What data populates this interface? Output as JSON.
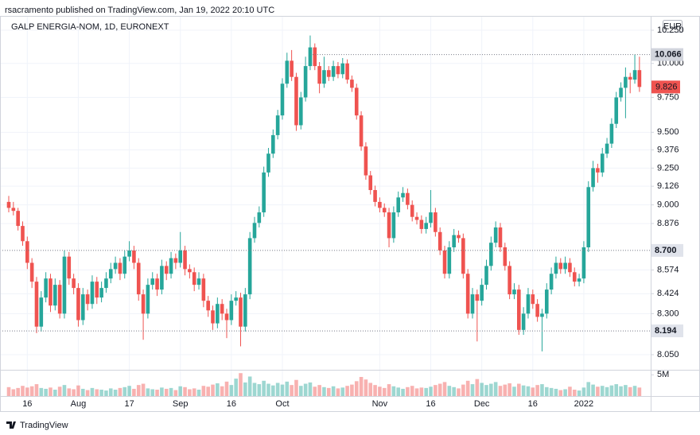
{
  "header": {
    "text": "rsacramento published on TradingView.com, Jan 19, 2022 20:10 UTC"
  },
  "footer": {
    "brand": "TradingView"
  },
  "chart_data": {
    "type": "candlestick",
    "title": "GALP ENERGIA-NOM, 1D, EURONEXT",
    "currency": "EUR",
    "log_scale": true,
    "grid": true,
    "up_color": "#26a69a",
    "down_color": "#ef5350",
    "ylim": [
      7.96,
      10.36
    ],
    "yticks": [
      {
        "value": 10.25,
        "label": "10.250"
      },
      {
        "value": 10,
        "label": "10.000"
      },
      {
        "value": 9.75,
        "label": "9.750"
      },
      {
        "value": 9.5,
        "label": "9.500"
      },
      9.376,
      {
        "value": 9.25,
        "label": "9.250"
      },
      9.126,
      {
        "value": 9,
        "label": "9.000"
      },
      8.876,
      8.574,
      8.424,
      {
        "value": 8.3,
        "label": "8.300"
      },
      {
        "value": 8.05,
        "label": "8.050"
      }
    ],
    "xticks": [
      {
        "value": 4,
        "label": "16"
      },
      {
        "value": 15,
        "label": "Aug"
      },
      {
        "value": 26,
        "label": "17"
      },
      {
        "value": 37,
        "label": "Sep"
      },
      {
        "value": 48,
        "label": "16"
      },
      {
        "value": 59,
        "label": "Oct"
      },
      {
        "value": 80,
        "label": "Nov"
      },
      {
        "value": 91,
        "label": "16"
      },
      {
        "value": 102,
        "label": "Dec"
      },
      {
        "value": 113,
        "label": "16"
      },
      {
        "value": 124,
        "label": "2022"
      }
    ],
    "price_lines": [
      {
        "value": 8.7,
        "label": "8.700"
      },
      {
        "value": 8.194,
        "label": "8.194"
      }
    ],
    "high_line": {
      "value": 10.066,
      "label": "10.066"
    },
    "last_price": {
      "value": 9.826,
      "label": "9.826"
    },
    "vlim": [
      0,
      6000000
    ],
    "vticks": [
      {
        "value": 5000000,
        "label": "5M"
      }
    ],
    "candles": [
      [
        9.02,
        9.06,
        8.95,
        8.98
      ],
      [
        8.98,
        9.02,
        8.93,
        8.96
      ],
      [
        8.96,
        8.98,
        8.83,
        8.86
      ],
      [
        8.86,
        8.89,
        8.73,
        8.76
      ],
      [
        8.76,
        8.79,
        8.58,
        8.62
      ],
      [
        8.62,
        8.65,
        8.46,
        8.5
      ],
      [
        8.5,
        8.53,
        8.18,
        8.22
      ],
      [
        8.22,
        8.44,
        8.19,
        8.4
      ],
      [
        8.4,
        8.56,
        8.37,
        8.52
      ],
      [
        8.52,
        8.55,
        8.31,
        8.35
      ],
      [
        8.35,
        8.52,
        8.32,
        8.48
      ],
      [
        8.48,
        8.51,
        8.27,
        8.3
      ],
      [
        8.3,
        8.7,
        8.27,
        8.66
      ],
      [
        8.66,
        8.69,
        8.48,
        8.52
      ],
      [
        8.52,
        8.55,
        8.42,
        8.46
      ],
      [
        8.46,
        8.49,
        8.22,
        8.26
      ],
      [
        8.26,
        8.46,
        8.23,
        8.42
      ],
      [
        8.42,
        8.45,
        8.32,
        8.36
      ],
      [
        8.36,
        8.54,
        8.33,
        8.5
      ],
      [
        8.5,
        8.53,
        8.36,
        8.4
      ],
      [
        8.4,
        8.5,
        8.37,
        8.46
      ],
      [
        8.46,
        8.56,
        8.43,
        8.52
      ],
      [
        8.52,
        8.62,
        8.49,
        8.58
      ],
      [
        8.58,
        8.66,
        8.55,
        8.62
      ],
      [
        8.62,
        8.65,
        8.51,
        8.55
      ],
      [
        8.55,
        8.7,
        8.52,
        8.66
      ],
      [
        8.66,
        8.76,
        8.63,
        8.7
      ],
      [
        8.7,
        8.73,
        8.58,
        8.62
      ],
      [
        8.62,
        8.65,
        8.38,
        8.42
      ],
      [
        8.42,
        8.45,
        8.14,
        8.3
      ],
      [
        8.3,
        8.52,
        8.27,
        8.48
      ],
      [
        8.48,
        8.56,
        8.45,
        8.52
      ],
      [
        8.52,
        8.55,
        8.41,
        8.45
      ],
      [
        8.45,
        8.64,
        8.42,
        8.6
      ],
      [
        8.6,
        8.63,
        8.51,
        8.55
      ],
      [
        8.55,
        8.69,
        8.52,
        8.65
      ],
      [
        8.65,
        8.68,
        8.58,
        8.62
      ],
      [
        8.62,
        8.82,
        8.59,
        8.7
      ],
      [
        8.7,
        8.73,
        8.54,
        8.58
      ],
      [
        8.58,
        8.61,
        8.52,
        8.56
      ],
      [
        8.56,
        8.59,
        8.44,
        8.48
      ],
      [
        8.48,
        8.56,
        8.45,
        8.52
      ],
      [
        8.52,
        8.55,
        8.34,
        8.38
      ],
      [
        8.38,
        8.41,
        8.28,
        8.32
      ],
      [
        8.32,
        8.35,
        8.2,
        8.24
      ],
      [
        8.24,
        8.4,
        8.21,
        8.36
      ],
      [
        8.36,
        8.39,
        8.26,
        8.3
      ],
      [
        8.3,
        8.33,
        8.15,
        8.26
      ],
      [
        8.26,
        8.42,
        8.23,
        8.38
      ],
      [
        8.38,
        8.44,
        8.35,
        8.4
      ],
      [
        8.4,
        8.43,
        8.1,
        8.22
      ],
      [
        8.22,
        8.46,
        8.19,
        8.42
      ],
      [
        8.42,
        8.82,
        8.39,
        8.78
      ],
      [
        8.78,
        8.92,
        8.75,
        8.88
      ],
      [
        8.88,
        8.99,
        8.85,
        8.95
      ],
      [
        8.95,
        9.26,
        8.92,
        9.22
      ],
      [
        9.22,
        9.39,
        9.19,
        9.35
      ],
      [
        9.35,
        9.52,
        9.32,
        9.48
      ],
      [
        9.48,
        9.66,
        9.45,
        9.62
      ],
      [
        9.62,
        9.89,
        9.59,
        9.85
      ],
      [
        9.85,
        10.08,
        9.82,
        10.02
      ],
      [
        10.02,
        10.1,
        9.87,
        9.9
      ],
      [
        9.9,
        9.93,
        9.51,
        9.55
      ],
      [
        9.55,
        9.79,
        9.52,
        9.75
      ],
      [
        9.75,
        10.05,
        9.72,
        9.98
      ],
      [
        9.98,
        10.21,
        9.95,
        10.12
      ],
      [
        10.12,
        10.15,
        9.95,
        9.98
      ],
      [
        9.98,
        10.01,
        9.78,
        9.85
      ],
      [
        9.85,
        10.05,
        9.82,
        9.95
      ],
      [
        9.95,
        9.98,
        9.87,
        9.9
      ],
      [
        9.9,
        10.02,
        9.87,
        9.98
      ],
      [
        9.98,
        10.01,
        9.89,
        9.92
      ],
      [
        9.92,
        10.04,
        9.89,
        10
      ],
      [
        10,
        10.03,
        9.85,
        9.88
      ],
      [
        9.88,
        9.91,
        9.79,
        9.82
      ],
      [
        9.82,
        9.85,
        9.59,
        9.62
      ],
      [
        9.62,
        9.65,
        9.37,
        9.4
      ],
      [
        9.4,
        9.43,
        9.17,
        9.2
      ],
      [
        9.2,
        9.23,
        9.07,
        9.1
      ],
      [
        9.1,
        9.13,
        8.99,
        9.02
      ],
      [
        9.02,
        9.05,
        8.95,
        8.98
      ],
      [
        8.98,
        9.01,
        8.92,
        8.95
      ],
      [
        8.95,
        8.98,
        8.72,
        8.78
      ],
      [
        8.78,
        8.99,
        8.75,
        8.95
      ],
      [
        8.95,
        9.09,
        8.92,
        9.05
      ],
      [
        9.05,
        9.12,
        9.02,
        9.08
      ],
      [
        9.08,
        9.11,
        8.97,
        9
      ],
      [
        9,
        9.03,
        8.89,
        8.92
      ],
      [
        8.92,
        8.95,
        8.87,
        8.9
      ],
      [
        8.9,
        8.93,
        8.81,
        8.84
      ],
      [
        8.84,
        8.92,
        8.81,
        8.88
      ],
      [
        8.88,
        9.1,
        8.85,
        8.95
      ],
      [
        8.95,
        8.98,
        8.79,
        8.82
      ],
      [
        8.82,
        8.85,
        8.67,
        8.7
      ],
      [
        8.7,
        8.73,
        8.52,
        8.55
      ],
      [
        8.55,
        8.76,
        8.52,
        8.72
      ],
      [
        8.72,
        8.84,
        8.69,
        8.8
      ],
      [
        8.8,
        8.83,
        8.75,
        8.78
      ],
      [
        8.78,
        8.81,
        8.52,
        8.55
      ],
      [
        8.55,
        8.58,
        8.27,
        8.3
      ],
      [
        8.3,
        8.46,
        8.27,
        8.42
      ],
      [
        8.42,
        8.45,
        8.13,
        8.38
      ],
      [
        8.38,
        8.52,
        8.35,
        8.48
      ],
      [
        8.48,
        8.64,
        8.45,
        8.6
      ],
      [
        8.6,
        8.79,
        8.57,
        8.75
      ],
      [
        8.75,
        8.89,
        8.72,
        8.85
      ],
      [
        8.85,
        8.88,
        8.69,
        8.72
      ],
      [
        8.72,
        8.75,
        8.57,
        8.6
      ],
      [
        8.6,
        8.63,
        8.39,
        8.42
      ],
      [
        8.42,
        8.49,
        8.39,
        8.45
      ],
      [
        8.45,
        8.48,
        8.17,
        8.2
      ],
      [
        8.2,
        8.34,
        8.17,
        8.3
      ],
      [
        8.3,
        8.46,
        8.27,
        8.42
      ],
      [
        8.42,
        8.45,
        8.33,
        8.36
      ],
      [
        8.36,
        8.39,
        8.25,
        8.28
      ],
      [
        8.28,
        8.33,
        8.07,
        8.3
      ],
      [
        8.3,
        8.49,
        8.27,
        8.45
      ],
      [
        8.45,
        8.59,
        8.42,
        8.55
      ],
      [
        8.55,
        8.66,
        8.52,
        8.62
      ],
      [
        8.62,
        8.65,
        8.55,
        8.58
      ],
      [
        8.58,
        8.66,
        8.55,
        8.62
      ],
      [
        8.62,
        8.65,
        8.53,
        8.56
      ],
      [
        8.56,
        8.59,
        8.47,
        8.5
      ],
      [
        8.5,
        8.55,
        8.47,
        8.52
      ],
      [
        8.52,
        8.76,
        8.49,
        8.72
      ],
      [
        8.72,
        9.16,
        8.69,
        9.12
      ],
      [
        9.12,
        9.3,
        9.09,
        9.25
      ],
      [
        9.25,
        9.28,
        9.15,
        9.22
      ],
      [
        9.22,
        9.39,
        9.19,
        9.35
      ],
      [
        9.35,
        9.46,
        9.32,
        9.42
      ],
      [
        9.42,
        9.6,
        9.39,
        9.56
      ],
      [
        9.56,
        9.79,
        9.53,
        9.75
      ],
      [
        9.75,
        9.86,
        9.72,
        9.82
      ],
      [
        9.82,
        9.97,
        9.6,
        9.9
      ],
      [
        9.9,
        9.93,
        9.78,
        9.88
      ],
      [
        9.88,
        10.066,
        9.85,
        9.95
      ],
      [
        9.95,
        10.05,
        9.79,
        9.826
      ]
    ],
    "volume": [
      2100000.0,
      1600000.0,
      1900000.0,
      2400000.0,
      2000000.0,
      2300000.0,
      2800000.0,
      1900000.0,
      1700000.0,
      2000000.0,
      1500000.0,
      2200000.0,
      2600000.0,
      1800000.0,
      1600000.0,
      2500000.0,
      1700000.0,
      1400000.0,
      1900000.0,
      1600000.0,
      1500000.0,
      1300000.0,
      1800000.0,
      1500000.0,
      1900000.0,
      2100000.0,
      2400000.0,
      1700000.0,
      2600000.0,
      2900000.0,
      1800000.0,
      1600000.0,
      1500000.0,
      2000000.0,
      1700000.0,
      1900000.0,
      1400000.0,
      2300000.0,
      2100000.0,
      1600000.0,
      1800000.0,
      1500000.0,
      2400000.0,
      2200000.0,
      2700000.0,
      3000000.0,
      2300000.0,
      3400000.0,
      2600000.0,
      4100000.0,
      5400000.0,
      3200000.0,
      4600000.0,
      3100000.0,
      2800000.0,
      3600000.0,
      2900000.0,
      2500000.0,
      3100000.0,
      2700000.0,
      3400000.0,
      2600000.0,
      3800000.0,
      2400000.0,
      2900000.0,
      3200000.0,
      2200000.0,
      2600000.0,
      2100000.0,
      1900000.0,
      2300000.0,
      1800000.0,
      2000000.0,
      2400000.0,
      2700000.0,
      3500000.0,
      4500000.0,
      3900000.0,
      3100000.0,
      2600000.0,
      2200000.0,
      1900000.0,
      2800000.0,
      2300000.0,
      2000000.0,
      1700000.0,
      2100000.0,
      2400000.0,
      1800000.0,
      2000000.0,
      1900000.0,
      2200000.0,
      2600000.0,
      2900000.0,
      3300000.0,
      2400000.0,
      2100000.0,
      1800000.0,
      2700000.0,
      3600000.0,
      2800000.0,
      4000000.0,
      3100000.0,
      2600000.0,
      2900000.0,
      3300000.0,
      2400000.0,
      2700000.0,
      3000000.0,
      2200000.0,
      2900000.0,
      2500000.0,
      2300000.0,
      2000000.0,
      2600000.0,
      2800000.0,
      2100000.0,
      1900000.0,
      1700000.0,
      1400000.0,
      1600000.0,
      2200000.0,
      1500000.0,
      1300000.0,
      2000000.0,
      3300000.0,
      2700000.0,
      2200000.0,
      2400000.0,
      2100000.0,
      2500000.0,
      2800000.0,
      2300000.0,
      2600000.0,
      2100000.0,
      2400000.0,
      2000000.0
    ]
  }
}
